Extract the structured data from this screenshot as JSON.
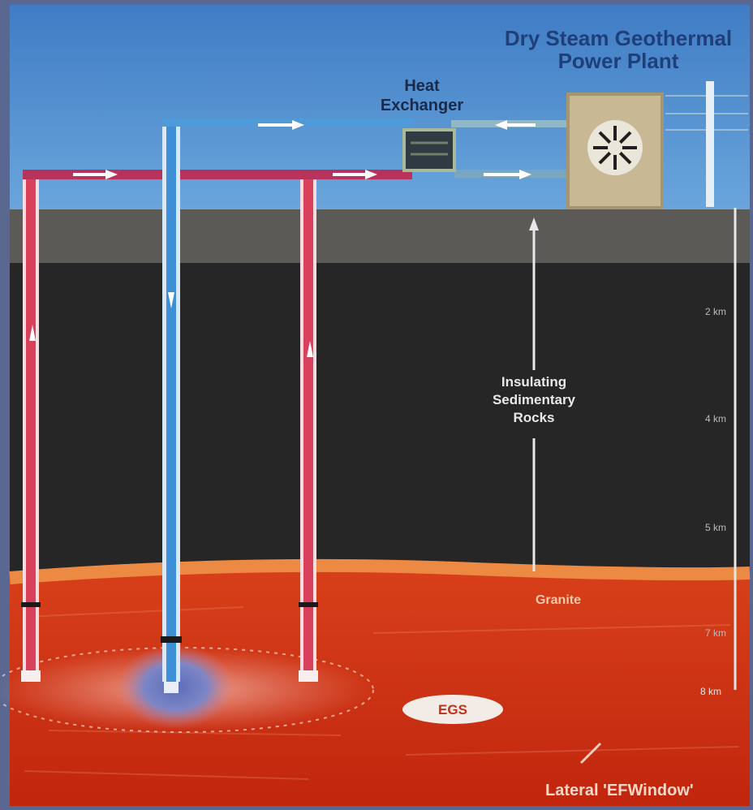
{
  "labels": {
    "plant_title_line1": "Dry Steam Geothermal",
    "plant_title_line2": "Power Plant",
    "heat_exchanger_line1": "Heat",
    "heat_exchanger_line2": "Exchanger",
    "rock_line1": "Insulating",
    "rock_line2": "Sedimentary",
    "rock_line3": "Rocks",
    "granite": "Granite",
    "egs": "EGS",
    "window_label": "Lateral 'EFWindow'"
  },
  "depth_scale": {
    "ticks": [
      "2 km",
      "4 km",
      "5 km",
      "7 km",
      "8 km"
    ]
  },
  "colors": {
    "sky": "#4f8fd0",
    "soil": "#5c5a56",
    "sediment": "#262626",
    "granite": "#cf3214",
    "granite_top": "#e9803c",
    "hot_pipe": "#d9405c",
    "cold_pipe": "#3f8fd6",
    "frame": "#5a6790"
  }
}
